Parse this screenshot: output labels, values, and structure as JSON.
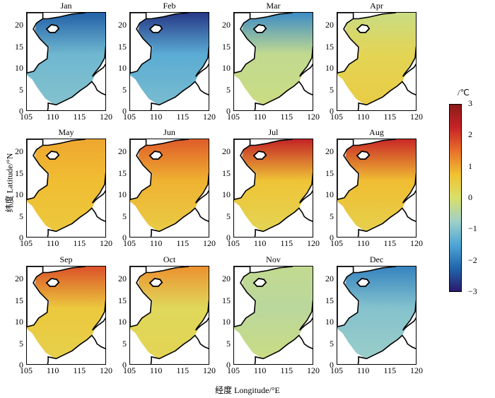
{
  "chart_data": {
    "type": "heatmap",
    "panel_titles": [
      "Jan",
      "Feb",
      "Mar",
      "Apr",
      "May",
      "Jun",
      "Jul",
      "Aug",
      "Sep",
      "Oct",
      "Nov",
      "Dec"
    ],
    "xlabel": "经度 Longitude/°E",
    "ylabel": "纬度 Latitude/°N",
    "xticks": [
      "105",
      "110",
      "115",
      "120"
    ],
    "yticks": [
      "0",
      "5",
      "10",
      "15",
      "20"
    ],
    "xlim": [
      105,
      120
    ],
    "ylim": [
      0,
      23
    ],
    "colorbar": {
      "unit": "/℃",
      "ticks": [
        "3",
        "2",
        "1",
        "0",
        "−1",
        "−2",
        "−3"
      ],
      "range": [
        -3,
        3
      ],
      "colors": [
        "#2b1a6e",
        "#2166ac",
        "#4fa6d6",
        "#9fd0c8",
        "#d9e06a",
        "#f1c232",
        "#e8712b",
        "#c72427",
        "#8b1a1a"
      ]
    },
    "monthly_anomaly": {
      "Jan": {
        "north": -2.3,
        "central": -1.2,
        "south": -1.0
      },
      "Feb": {
        "north": -2.7,
        "central": -1.4,
        "south": -1.1
      },
      "Mar": {
        "north": -1.8,
        "central": -0.3,
        "south": -0.2
      },
      "Apr": {
        "north": -0.2,
        "central": 0.3,
        "south": 0.5
      },
      "May": {
        "north": 1.0,
        "central": 0.8,
        "south": 0.6
      },
      "Jun": {
        "north": 1.7,
        "central": 0.9,
        "south": 0.5
      },
      "Jul": {
        "north": 2.3,
        "central": 0.7,
        "south": 0.3
      },
      "Aug": {
        "north": 2.2,
        "central": 0.8,
        "south": 0.4
      },
      "Sep": {
        "north": 1.8,
        "central": 0.6,
        "south": 0.4
      },
      "Oct": {
        "north": 1.2,
        "central": 0.2,
        "south": 0.3
      },
      "Nov": {
        "north": -0.3,
        "central": -0.4,
        "south": -0.2
      },
      "Dec": {
        "north": -1.9,
        "central": -1.0,
        "south": -0.8
      }
    }
  }
}
